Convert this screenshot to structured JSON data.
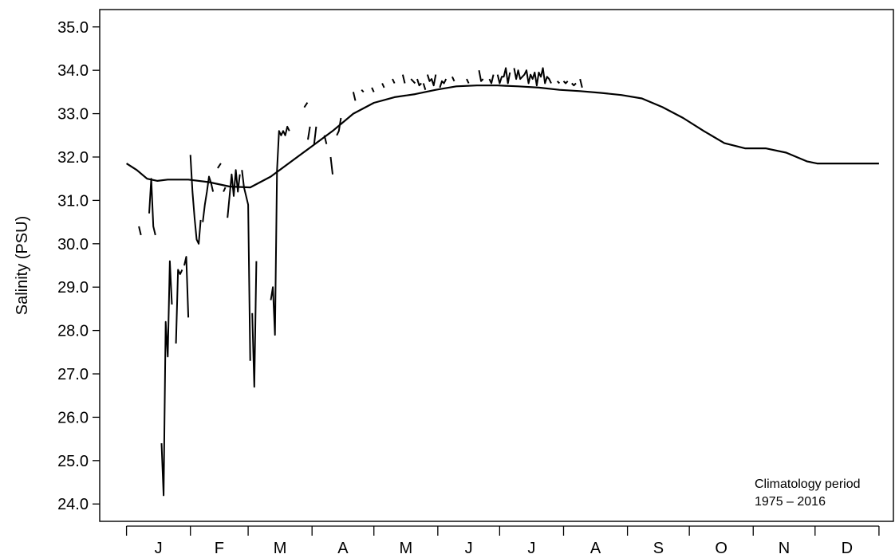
{
  "chart_data": {
    "type": "line",
    "title": "",
    "xlabel": "",
    "ylabel": "Salinity (PSU)",
    "ylim": [
      23.6,
      35.4
    ],
    "xlim": [
      -13,
      372
    ],
    "yticks": [
      "24.0",
      "25.0",
      "26.0",
      "27.0",
      "28.0",
      "29.0",
      "30.0",
      "31.0",
      "32.0",
      "33.0",
      "34.0",
      "35.0"
    ],
    "month_labels": [
      "J",
      "F",
      "M",
      "A",
      "M",
      "J",
      "J",
      "A",
      "S",
      "O",
      "N",
      "D"
    ],
    "month_ticks": [
      0,
      31,
      59,
      90,
      120,
      151,
      181,
      212,
      243,
      273,
      304,
      334,
      365
    ],
    "grid": false,
    "legend": "none",
    "annotation": {
      "line1": "Climatology period",
      "line2": "1975  – 2016"
    },
    "series": [
      {
        "role": "climatology",
        "x": [
          0,
          5,
          10,
          15,
          20,
          30,
          40,
          50,
          60,
          70,
          80,
          90,
          100,
          110,
          120,
          130,
          140,
          150,
          160,
          170,
          180,
          190,
          200,
          210,
          220,
          230,
          240,
          250,
          260,
          270,
          280,
          290,
          300,
          310,
          320,
          330,
          335,
          340,
          345,
          350,
          355,
          360,
          365
        ],
        "y": [
          31.85,
          31.7,
          31.5,
          31.45,
          31.48,
          31.48,
          31.42,
          31.32,
          31.3,
          31.55,
          31.9,
          32.25,
          32.6,
          33.0,
          33.25,
          33.38,
          33.45,
          33.55,
          33.63,
          33.65,
          33.65,
          33.63,
          33.6,
          33.55,
          33.52,
          33.48,
          33.43,
          33.35,
          33.15,
          32.9,
          32.6,
          32.32,
          32.2,
          32.2,
          32.1,
          31.9,
          31.85,
          31.85,
          31.85,
          31.85,
          31.85,
          31.85,
          31.85
        ]
      }
    ],
    "segments": [
      [
        [
          6,
          30.4
        ],
        [
          7,
          30.2
        ]
      ],
      [
        [
          11,
          30.7
        ],
        [
          12,
          31.5
        ],
        [
          13,
          30.4
        ],
        [
          14,
          30.2
        ]
      ],
      [
        [
          17,
          25.4
        ],
        [
          18,
          24.2
        ],
        [
          19,
          28.2
        ],
        [
          20,
          27.4
        ],
        [
          21,
          29.6
        ],
        [
          22,
          28.6
        ]
      ],
      [
        [
          24,
          27.7
        ],
        [
          25,
          29.4
        ],
        [
          26,
          29.3
        ],
        [
          27,
          29.4
        ]
      ],
      [
        [
          28,
          29.5
        ],
        [
          29,
          29.7
        ],
        [
          30,
          28.3
        ]
      ],
      [
        [
          31,
          32.05
        ],
        [
          32,
          31.2
        ],
        [
          33,
          30.6
        ],
        [
          34,
          30.1
        ],
        [
          35,
          30.0
        ],
        [
          36,
          30.55
        ]
      ],
      [
        [
          37,
          30.5
        ],
        [
          38,
          30.9
        ],
        [
          39,
          31.2
        ],
        [
          40,
          31.55
        ],
        [
          41,
          31.4
        ],
        [
          42,
          31.2
        ]
      ],
      [
        [
          45,
          31.8
        ]
      ],
      [
        [
          47,
          31.2
        ],
        [
          48,
          31.3
        ]
      ],
      [
        [
          49,
          30.6
        ],
        [
          50,
          31.1
        ],
        [
          51,
          31.6
        ],
        [
          52,
          31.1
        ],
        [
          53,
          31.7
        ],
        [
          54,
          31.2
        ],
        [
          55,
          31.6
        ]
      ],
      [
        [
          56,
          31.7
        ],
        [
          57,
          31.3
        ],
        [
          58,
          31.1
        ],
        [
          59,
          30.9
        ],
        [
          60,
          27.3
        ]
      ],
      [
        [
          61,
          28.4
        ],
        [
          62,
          26.7
        ],
        [
          63,
          29.6
        ]
      ],
      [
        [
          70,
          28.7
        ],
        [
          71,
          29.0
        ],
        [
          72,
          27.9
        ],
        [
          73,
          31.7
        ],
        [
          74,
          32.6
        ],
        [
          75,
          32.5
        ],
        [
          76,
          32.6
        ],
        [
          77,
          32.5
        ],
        [
          78,
          32.7
        ],
        [
          79,
          32.6
        ]
      ],
      [
        [
          87,
          33.2
        ]
      ],
      [
        [
          88,
          32.4
        ],
        [
          89,
          32.7
        ]
      ],
      [
        [
          91,
          32.3
        ],
        [
          92,
          32.7
        ]
      ],
      [
        [
          96,
          32.5
        ],
        [
          97,
          32.3
        ]
      ],
      [
        [
          99,
          32.0
        ],
        [
          100,
          31.6
        ]
      ],
      [
        [
          102,
          32.5
        ],
        [
          103,
          32.6
        ],
        [
          104,
          32.9
        ]
      ],
      [
        [
          110,
          33.5
        ],
        [
          111,
          33.3
        ]
      ],
      [
        [
          114,
          33.55
        ],
        [
          115,
          33.5
        ]
      ],
      [
        [
          119,
          33.6
        ],
        [
          120,
          33.5
        ]
      ],
      [
        [
          124,
          33.7
        ],
        [
          125,
          33.6
        ]
      ],
      [
        [
          129,
          33.8
        ],
        [
          130,
          33.7
        ]
      ],
      [
        [
          134,
          33.9
        ],
        [
          135,
          33.7
        ]
      ],
      [
        [
          138,
          33.8
        ],
        [
          139,
          33.75
        ],
        [
          140,
          33.7
        ]
      ],
      [
        [
          141,
          33.8
        ],
        [
          142,
          33.65
        ],
        [
          143,
          33.7
        ]
      ],
      [
        [
          144,
          33.7
        ],
        [
          145,
          33.55
        ]
      ],
      [
        [
          146,
          33.9
        ],
        [
          147,
          33.75
        ],
        [
          148,
          33.8
        ],
        [
          149,
          33.65
        ],
        [
          150,
          33.9
        ]
      ],
      [
        [
          152,
          33.6
        ],
        [
          153,
          33.75
        ],
        [
          154,
          33.7
        ],
        [
          155,
          33.8
        ]
      ],
      [
        [
          158,
          33.85
        ],
        [
          159,
          33.75
        ]
      ],
      [
        [
          165,
          33.8
        ],
        [
          166,
          33.7
        ]
      ],
      [
        [
          171,
          34.0
        ],
        [
          172,
          33.75
        ],
        [
          173,
          33.8
        ]
      ],
      [
        [
          176,
          33.8
        ],
        [
          177,
          33.7
        ],
        [
          178,
          33.9
        ]
      ],
      [
        [
          180,
          33.9
        ],
        [
          181,
          33.7
        ],
        [
          182,
          33.85
        ],
        [
          183,
          33.85
        ],
        [
          184,
          34.05
        ],
        [
          185,
          33.7
        ],
        [
          186,
          33.95
        ]
      ],
      [
        [
          188,
          34.05
        ],
        [
          189,
          33.8
        ],
        [
          190,
          34.0
        ],
        [
          191,
          33.8
        ],
        [
          192,
          33.85
        ],
        [
          193,
          33.9
        ],
        [
          194,
          34.0
        ],
        [
          195,
          33.7
        ],
        [
          196,
          33.9
        ],
        [
          197,
          33.8
        ],
        [
          198,
          33.95
        ],
        [
          199,
          33.65
        ],
        [
          200,
          33.95
        ],
        [
          201,
          33.85
        ],
        [
          202,
          34.05
        ],
        [
          203,
          33.7
        ],
        [
          204,
          33.85
        ],
        [
          205,
          33.8
        ],
        [
          206,
          33.7
        ]
      ],
      [
        [
          209,
          33.75
        ],
        [
          210,
          33.7
        ]
      ],
      [
        [
          212,
          33.75
        ],
        [
          213,
          33.7
        ],
        [
          214,
          33.75
        ]
      ],
      [
        [
          216,
          33.7
        ],
        [
          217,
          33.65
        ],
        [
          218,
          33.7
        ]
      ],
      [
        [
          220,
          33.8
        ],
        [
          221,
          33.6
        ]
      ]
    ]
  }
}
